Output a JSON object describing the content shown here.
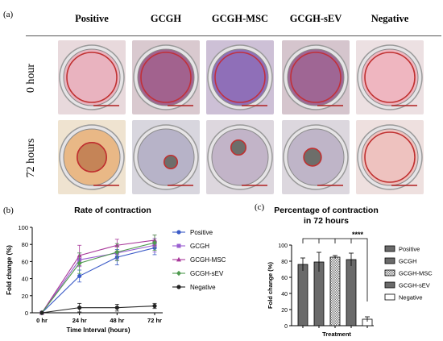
{
  "panel_a": {
    "letter": "(a)",
    "columns": [
      "Positive",
      "GCGH",
      "GCGH-MSC",
      "GCGH-sEV",
      "Negative"
    ],
    "rows": [
      "0 hour",
      "72 hours"
    ],
    "dishes": [
      [
        {
          "bg": "#e8d9dc",
          "well": "#e9b3bf",
          "ring": "#c03030",
          "inner": 0.0
        },
        {
          "bg": "#d9c9cf",
          "well": "#a2628e",
          "ring": "#c0303a",
          "inner": 0.0
        },
        {
          "bg": "#cdc0d6",
          "well": "#8f6fb8",
          "ring": "#c03040",
          "inner": 0.0
        },
        {
          "bg": "#d5c5cd",
          "well": "#9f6694",
          "ring": "#c0303a",
          "inner": 0.0
        },
        {
          "bg": "#ece0e2",
          "well": "#efb6c0",
          "ring": "#c03030",
          "inner": 0.0
        }
      ],
      [
        {
          "bg": "#efe3d0",
          "well": "#e9b886",
          "ring": "#c03030",
          "inner": 0.55
        },
        {
          "bg": "#d8d6de",
          "well": "#b7b3c8",
          "ring": "#c03030",
          "inner": 0.25
        },
        {
          "bg": "#ddd7de",
          "well": "#c2b4c8",
          "ring": "#c03030",
          "inner": 0.28
        },
        {
          "bg": "#dcd7de",
          "well": "#bfb5c8",
          "ring": "#c03030",
          "inner": 0.33
        },
        {
          "bg": "#eee0df",
          "well": "#eec2bf",
          "ring": "#c03030",
          "inner": 0.0
        }
      ]
    ]
  },
  "panel_b": {
    "letter": "(b)",
    "title": "Rate of contraction",
    "ylabel": "Fold change (%)",
    "xlabel": "Time Interval (hours)"
  },
  "panel_c": {
    "letter": "(c)",
    "title_line1": "Percentage of contraction",
    "title_line2": "in 72 hours",
    "ylabel": "Fold change (%)",
    "xlabel": "Treatment",
    "significance": "****"
  },
  "chart_data": [
    {
      "type": "line",
      "title": "Rate of contraction",
      "xlabel": "Time Interval (hours)",
      "ylabel": "Fold change (%)",
      "x": [
        "0 hr",
        "24 hr",
        "48 hr",
        "72 hr"
      ],
      "ylim": [
        0,
        100
      ],
      "yticks": [
        0,
        20,
        40,
        60,
        80,
        100
      ],
      "legend": "right",
      "series": [
        {
          "name": "Positive",
          "color": "#3b5bc7",
          "marker": "circle",
          "values": [
            0,
            43,
            65,
            76
          ],
          "err": [
            0,
            7,
            9,
            8
          ]
        },
        {
          "name": "GCGH",
          "color": "#9a5fd0",
          "marker": "square",
          "values": [
            0,
            62,
            70,
            79
          ],
          "err": [
            0,
            8,
            8,
            8
          ]
        },
        {
          "name": "GCGH-MSC",
          "color": "#a8389a",
          "marker": "triangle",
          "values": [
            0,
            67,
            79,
            85
          ],
          "err": [
            0,
            12,
            7,
            6
          ]
        },
        {
          "name": "GCGH-sEV",
          "color": "#4f9a4f",
          "marker": "diamond",
          "values": [
            0,
            58,
            71,
            82
          ],
          "err": [
            0,
            12,
            10,
            9
          ]
        },
        {
          "name": "Negative",
          "color": "#222222",
          "marker": "circle",
          "values": [
            0,
            6,
            6,
            8
          ],
          "err": [
            0,
            5,
            4,
            3
          ]
        }
      ]
    },
    {
      "type": "bar",
      "title": "Percentage of contraction in 72 hours",
      "xlabel": "Treatment",
      "ylabel": "Fold change (%)",
      "categories": [
        "Positive",
        "GCGH",
        "GCGH-MSC",
        "GCGH-sEV",
        "Negative"
      ],
      "values": [
        76,
        79,
        85,
        82,
        8
      ],
      "err": [
        8,
        12,
        2,
        8,
        3
      ],
      "fills": [
        "#6a6a6a",
        "#6a6a6a",
        "checker",
        "#6a6a6a",
        "#ffffff"
      ],
      "ylim": [
        0,
        100
      ],
      "yticks": [
        0,
        20,
        40,
        60,
        80,
        100
      ],
      "legend": "right",
      "annotation": "****"
    }
  ]
}
